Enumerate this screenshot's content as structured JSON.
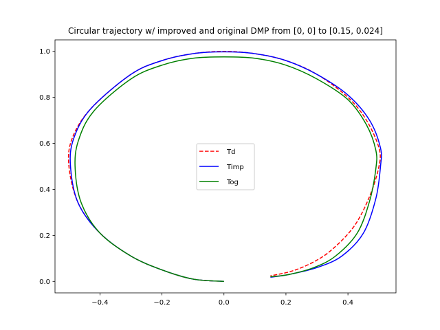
{
  "chart_data": {
    "type": "line",
    "title": "Circular trajectory w/ improved and original DMP from [0, 0] to [0.15, 0.024]",
    "xlabel": "",
    "ylabel": "",
    "xlim": [
      -0.545,
      0.555
    ],
    "ylim": [
      -0.05,
      1.05
    ],
    "x_ticks": [
      -0.4,
      -0.2,
      0.0,
      0.2,
      0.4
    ],
    "x_tick_labels": [
      "−0.4",
      "−0.2",
      "0.0",
      "0.2",
      "0.4"
    ],
    "y_ticks": [
      0.0,
      0.2,
      0.4,
      0.6,
      0.8,
      1.0
    ],
    "y_tick_labels": [
      "0.0",
      "0.2",
      "0.4",
      "0.6",
      "0.8",
      "1.0"
    ],
    "grid": false,
    "legend_position": "center",
    "series": [
      {
        "name": "Td",
        "color": "#ff0000",
        "style": "dashed",
        "x": [
          0.0,
          -0.1,
          -0.2,
          -0.3,
          -0.4,
          -0.47,
          -0.5,
          -0.49,
          -0.43,
          -0.3,
          -0.2,
          -0.1,
          0.0,
          0.1,
          0.2,
          0.3,
          0.4,
          0.46,
          0.5,
          0.5,
          0.47,
          0.42,
          0.35,
          0.29,
          0.22,
          0.15
        ],
        "y": [
          0.0,
          0.01,
          0.05,
          0.11,
          0.21,
          0.34,
          0.5,
          0.62,
          0.75,
          0.9,
          0.96,
          0.99,
          1.0,
          0.99,
          0.96,
          0.9,
          0.8,
          0.7,
          0.58,
          0.5,
          0.37,
          0.24,
          0.14,
          0.085,
          0.045,
          0.024
        ]
      },
      {
        "name": "Timp",
        "color": "#0000ff",
        "style": "solid",
        "x": [
          0.0,
          -0.1,
          -0.2,
          -0.3,
          -0.4,
          -0.47,
          -0.495,
          -0.485,
          -0.43,
          -0.3,
          -0.2,
          -0.1,
          0.0,
          0.1,
          0.2,
          0.3,
          0.4,
          0.47,
          0.505,
          0.505,
          0.49,
          0.45,
          0.38,
          0.3,
          0.21,
          0.15
        ],
        "y": [
          0.0,
          0.01,
          0.05,
          0.11,
          0.21,
          0.34,
          0.5,
          0.62,
          0.75,
          0.9,
          0.96,
          0.99,
          0.998,
          0.99,
          0.96,
          0.9,
          0.81,
          0.7,
          0.58,
          0.5,
          0.36,
          0.21,
          0.11,
          0.06,
          0.03,
          0.018
        ]
      },
      {
        "name": "Tog",
        "color": "#008000",
        "style": "solid",
        "x": [
          0.0,
          -0.1,
          -0.2,
          -0.3,
          -0.4,
          -0.46,
          -0.48,
          -0.47,
          -0.42,
          -0.3,
          -0.2,
          -0.1,
          0.0,
          0.1,
          0.2,
          0.3,
          0.4,
          0.46,
          0.49,
          0.49,
          0.47,
          0.43,
          0.36,
          0.29,
          0.21,
          0.15
        ],
        "y": [
          0.0,
          0.01,
          0.05,
          0.11,
          0.21,
          0.34,
          0.49,
          0.61,
          0.74,
          0.88,
          0.94,
          0.97,
          0.976,
          0.97,
          0.94,
          0.88,
          0.79,
          0.68,
          0.57,
          0.49,
          0.35,
          0.21,
          0.11,
          0.06,
          0.03,
          0.02
        ]
      }
    ]
  }
}
